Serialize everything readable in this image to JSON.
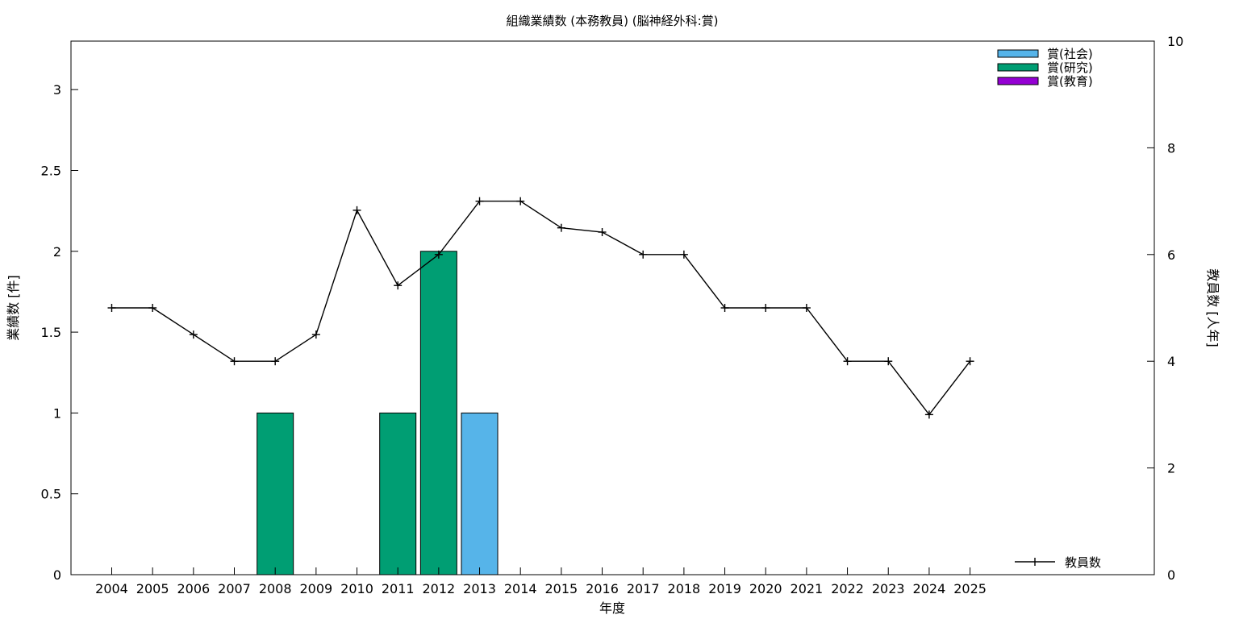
{
  "chart_data": {
    "type": "bar",
    "title": "組織業績数 (本務教員) (脳神経外科:賞)",
    "xlabel": "年度",
    "ylabel": "業績数 [件]",
    "y2label": "教員数 [人年]",
    "categories": [
      "2004",
      "2005",
      "2006",
      "2007",
      "2008",
      "2009",
      "2010",
      "2011",
      "2012",
      "2013",
      "2014",
      "2015",
      "2016",
      "2017",
      "2018",
      "2019",
      "2020",
      "2021",
      "2022",
      "2023",
      "2024",
      "2025"
    ],
    "ylim": [
      0,
      3.3
    ],
    "yticks": [
      0,
      0.5,
      1,
      1.5,
      2,
      2.5,
      3
    ],
    "ytick_labels": [
      "0",
      "0.5",
      "1",
      "1.5",
      "2",
      "2.5",
      "3"
    ],
    "y2lim": [
      0,
      10
    ],
    "y2ticks": [
      0,
      2,
      4,
      6,
      8,
      10
    ],
    "y2tick_labels": [
      "0",
      "2",
      "4",
      "6",
      "8",
      "10"
    ],
    "grid": false,
    "series": [
      {
        "name": "賞(社会)",
        "kind": "bar",
        "axis": "left",
        "color": "#56b4e9",
        "values": [
          0,
          0,
          0,
          0,
          0,
          0,
          0,
          0,
          0,
          1,
          0,
          0,
          0,
          0,
          0,
          0,
          0,
          0,
          0,
          0,
          0,
          0
        ]
      },
      {
        "name": "賞(研究)",
        "kind": "bar",
        "axis": "left",
        "color": "#009e73",
        "values": [
          0,
          0,
          0,
          0,
          1,
          0,
          0,
          1,
          2,
          0,
          0,
          0,
          0,
          0,
          0,
          0,
          0,
          0,
          0,
          0,
          0,
          0
        ]
      },
      {
        "name": "賞(教育)",
        "kind": "bar",
        "axis": "left",
        "color": "#9400d3",
        "values": [
          0,
          0,
          0,
          0,
          0,
          0,
          0,
          0,
          0,
          0,
          0,
          0,
          0,
          0,
          0,
          0,
          0,
          0,
          0,
          0,
          0,
          0
        ]
      },
      {
        "name": "教員数",
        "kind": "line",
        "axis": "right",
        "color": "#000000",
        "values": [
          5,
          5,
          4.5,
          4,
          4,
          4.5,
          6.83,
          5.42,
          6,
          7,
          7,
          6.5,
          6.42,
          6,
          6,
          5,
          5,
          5,
          4,
          4,
          3,
          4
        ]
      }
    ],
    "legend_bars_position": "top-right",
    "legend_line_position": "bottom-right"
  }
}
